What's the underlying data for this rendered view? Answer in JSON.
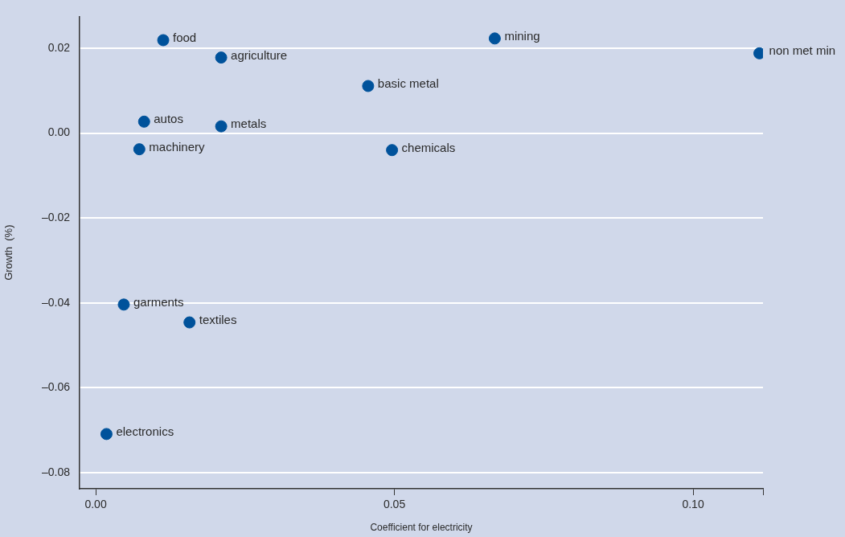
{
  "chart_data": {
    "type": "scatter",
    "xlabel": "Coefficient for electricity",
    "ylabel": "Growth  (%)",
    "x": [
      0.0113,
      0.021,
      0.0456,
      0.0081,
      0.021,
      0.0073,
      0.0496,
      0.0668,
      0.1111,
      0.0047,
      0.0157,
      0.0018
    ],
    "series": [
      {
        "color": "#00529b",
        "values": [
          0.0219,
          0.0178,
          0.0111,
          0.0027,
          0.0016,
          -0.0038,
          -0.004,
          0.0223,
          0.0188,
          -0.0404,
          -0.0446,
          -0.0709
        ]
      }
    ],
    "annotations": [
      {
        "text": "food",
        "x": 0.0113,
        "y": 0.0219
      },
      {
        "text": "agriculture",
        "x": 0.021,
        "y": 0.0178
      },
      {
        "text": "basic metal",
        "x": 0.0456,
        "y": 0.0111
      },
      {
        "text": "autos",
        "x": 0.0081,
        "y": 0.0027
      },
      {
        "text": "metals",
        "x": 0.021,
        "y": 0.0016
      },
      {
        "text": "machinery",
        "x": 0.0073,
        "y": -0.0038
      },
      {
        "text": "chemicals",
        "x": 0.0496,
        "y": -0.004
      },
      {
        "text": "mining",
        "x": 0.0668,
        "y": 0.0223
      },
      {
        "text": "non met min",
        "x": 0.1111,
        "y": 0.0188
      },
      {
        "text": "garments",
        "x": 0.0047,
        "y": -0.0404
      },
      {
        "text": "textiles",
        "x": 0.0157,
        "y": -0.0446
      },
      {
        "text": "electronics",
        "x": 0.0018,
        "y": -0.0709
      }
    ],
    "xlim": [
      -0.0027,
      0.1117
    ],
    "xticks": [
      {
        "value": 0,
        "label": "0.00"
      },
      {
        "value": 0.05,
        "label": "0.05"
      },
      {
        "value": 0.1,
        "label": "0.10"
      },
      {
        "value": 0.1117,
        "label": null
      }
    ],
    "ylim": [
      -0.0838,
      0.0275
    ],
    "yticks": [
      {
        "value": -0.08,
        "label": "–0.08"
      },
      {
        "value": -0.06,
        "label": "–0.06"
      },
      {
        "value": -0.04,
        "label": "–0.04"
      },
      {
        "value": -0.02,
        "label": "–0.02"
      },
      {
        "value": 0,
        "label": "0.00"
      },
      {
        "value": 0.02,
        "label": "0.02"
      }
    ],
    "grid": "y",
    "legend": false,
    "marker": "circle"
  }
}
